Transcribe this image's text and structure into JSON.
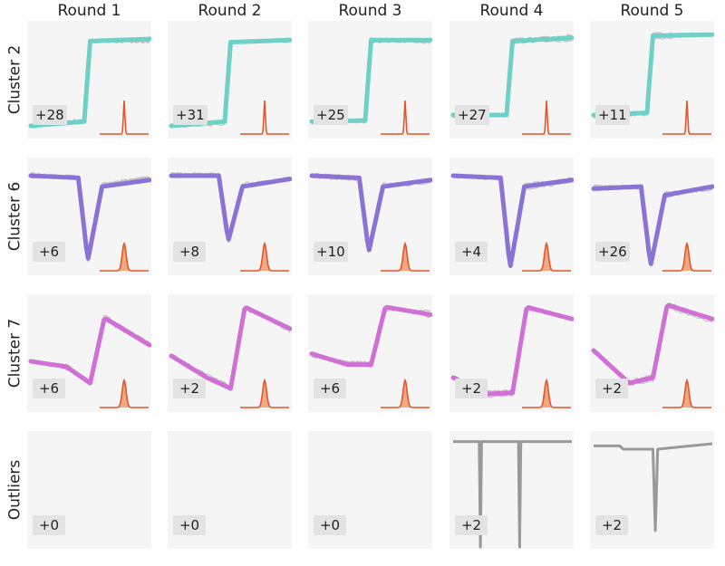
{
  "columns": [
    "Round 1",
    "Round 2",
    "Round 3",
    "Round 4",
    "Round 5"
  ],
  "rows": [
    "Cluster 2",
    "Cluster 6",
    "Cluster 7",
    "Outliers"
  ],
  "colors": {
    "Cluster 2": "#6fd0c8",
    "Cluster 6": "#8b73d6",
    "Cluster 7": "#d070d6",
    "Outliers": "#999999",
    "member_trace": "#b8b8b8",
    "distribution": "#e2572a",
    "distribution_fill": "#f09a6e",
    "panel_bg": "#f5f5f5",
    "badge_bg": "#e3e3e3"
  },
  "chart_data": {
    "type": "line",
    "counts": {
      "Cluster 2": [
        "+28",
        "+31",
        "+25",
        "+27",
        "+11"
      ],
      "Cluster 6": [
        "+6",
        "+8",
        "+10",
        "+4",
        "+26"
      ],
      "Cluster 7": [
        "+6",
        "+2",
        "+6",
        "+2",
        "+2"
      ],
      "Outliers": [
        "+0",
        "+0",
        "+0",
        "+2",
        "+2"
      ]
    },
    "centroids": {
      "Cluster 2": [
        [
          0.1,
          0.14,
          0.88,
          0.9,
          0.9
        ],
        [
          0.1,
          0.14,
          0.87,
          0.9,
          0.89
        ],
        [
          0.14,
          0.15,
          0.89,
          0.9,
          0.89
        ],
        [
          0.2,
          0.2,
          0.88,
          0.9,
          0.91
        ],
        [
          0.2,
          0.22,
          0.93,
          0.93,
          0.94
        ]
      ],
      "Cluster 6": [
        [
          0.9,
          0.88,
          0.12,
          0.8,
          0.86
        ],
        [
          0.9,
          0.9,
          0.3,
          0.8,
          0.87
        ],
        [
          0.9,
          0.88,
          0.2,
          0.8,
          0.86
        ],
        [
          0.9,
          0.88,
          0.05,
          0.8,
          0.86
        ],
        [
          0.78,
          0.8,
          0.07,
          0.72,
          0.8
        ]
      ],
      "Cluster 7": [
        [
          0.45,
          0.4,
          0.25,
          0.85,
          0.6
        ],
        [
          0.5,
          0.3,
          0.2,
          0.95,
          0.75
        ],
        [
          0.52,
          0.42,
          0.42,
          0.95,
          0.88
        ],
        [
          0.3,
          0.15,
          0.16,
          0.95,
          0.84
        ],
        [
          0.55,
          0.25,
          0.3,
          0.97,
          0.84
        ]
      ]
    },
    "outlier_traces": {
      "Round 4": [
        0.97,
        0.0,
        0.97
      ],
      "Round 5": [
        0.93,
        0.9,
        0.0,
        0.95
      ]
    },
    "distribution_width": {
      "Cluster 2": 0.015,
      "Cluster 6": 0.04,
      "Cluster 7": 0.04
    }
  }
}
